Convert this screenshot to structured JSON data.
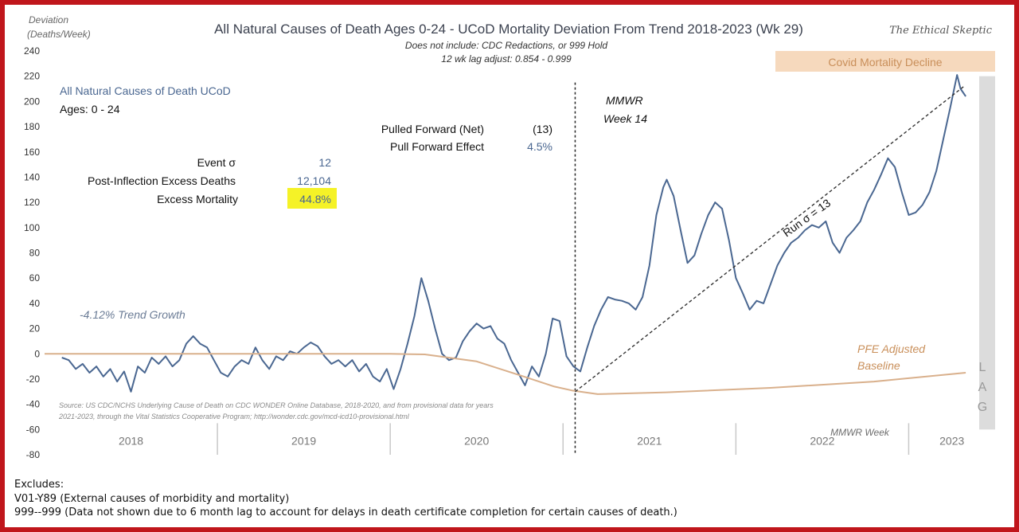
{
  "chart_data": {
    "type": "line",
    "title": "All Natural Causes of Death Ages 0-24 - UCoD Mortality Deviation From Trend  2018-2023 (Wk 29)",
    "subtitle_lines": [
      "Does not include: CDC Redactions,  or 999 Hold",
      "12 wk lag adjust: 0.854 - 0.999"
    ],
    "brand": "The Ethical Skeptic",
    "ylabel_lines": [
      "Deviation",
      "(Deaths/Week)"
    ],
    "ylim": [
      -80,
      240
    ],
    "yticks": [
      -80,
      -60,
      -40,
      -20,
      0,
      20,
      40,
      60,
      80,
      100,
      120,
      140,
      160,
      180,
      200,
      220,
      240
    ],
    "x_categories": [
      "2018",
      "2019",
      "2020",
      "2021",
      "2022",
      "2023"
    ],
    "xlabel": "MMWR Week",
    "series": [
      {
        "name": "All Natural Causes of Death UCoD",
        "color": "#4a6791",
        "points": [
          [
            0.1,
            -3
          ],
          [
            0.14,
            -5
          ],
          [
            0.18,
            -12
          ],
          [
            0.22,
            -8
          ],
          [
            0.26,
            -15
          ],
          [
            0.3,
            -10
          ],
          [
            0.34,
            -18
          ],
          [
            0.38,
            -12
          ],
          [
            0.42,
            -22
          ],
          [
            0.46,
            -14
          ],
          [
            0.5,
            -30
          ],
          [
            0.54,
            -10
          ],
          [
            0.58,
            -15
          ],
          [
            0.62,
            -3
          ],
          [
            0.66,
            -8
          ],
          [
            0.7,
            -2
          ],
          [
            0.74,
            -10
          ],
          [
            0.78,
            -5
          ],
          [
            0.82,
            8
          ],
          [
            0.86,
            14
          ],
          [
            0.9,
            8
          ],
          [
            0.94,
            5
          ],
          [
            0.98,
            -5
          ],
          [
            1.02,
            -15
          ],
          [
            1.06,
            -18
          ],
          [
            1.1,
            -10
          ],
          [
            1.14,
            -5
          ],
          [
            1.18,
            -8
          ],
          [
            1.22,
            5
          ],
          [
            1.26,
            -5
          ],
          [
            1.3,
            -12
          ],
          [
            1.34,
            -2
          ],
          [
            1.38,
            -5
          ],
          [
            1.42,
            2
          ],
          [
            1.46,
            0
          ],
          [
            1.5,
            5
          ],
          [
            1.54,
            9
          ],
          [
            1.58,
            6
          ],
          [
            1.62,
            -2
          ],
          [
            1.66,
            -8
          ],
          [
            1.7,
            -5
          ],
          [
            1.74,
            -10
          ],
          [
            1.78,
            -5
          ],
          [
            1.82,
            -14
          ],
          [
            1.86,
            -8
          ],
          [
            1.9,
            -18
          ],
          [
            1.94,
            -22
          ],
          [
            1.98,
            -12
          ],
          [
            2.02,
            -28
          ],
          [
            2.06,
            -12
          ],
          [
            2.1,
            8
          ],
          [
            2.14,
            30
          ],
          [
            2.18,
            60
          ],
          [
            2.22,
            42
          ],
          [
            2.26,
            20
          ],
          [
            2.3,
            0
          ],
          [
            2.34,
            -5
          ],
          [
            2.38,
            -3
          ],
          [
            2.42,
            10
          ],
          [
            2.46,
            18
          ],
          [
            2.5,
            24
          ],
          [
            2.54,
            20
          ],
          [
            2.58,
            22
          ],
          [
            2.62,
            12
          ],
          [
            2.66,
            8
          ],
          [
            2.7,
            -5
          ],
          [
            2.74,
            -15
          ],
          [
            2.78,
            -25
          ],
          [
            2.82,
            -10
          ],
          [
            2.86,
            -18
          ],
          [
            2.9,
            0
          ],
          [
            2.94,
            28
          ],
          [
            2.98,
            26
          ],
          [
            3.02,
            -2
          ],
          [
            3.06,
            -10
          ],
          [
            3.1,
            -14
          ],
          [
            3.14,
            5
          ],
          [
            3.18,
            22
          ],
          [
            3.22,
            35
          ],
          [
            3.26,
            45
          ],
          [
            3.3,
            43
          ],
          [
            3.34,
            42
          ],
          [
            3.38,
            40
          ],
          [
            3.42,
            35
          ],
          [
            3.46,
            45
          ],
          [
            3.5,
            70
          ],
          [
            3.54,
            110
          ],
          [
            3.58,
            132
          ],
          [
            3.6,
            138
          ],
          [
            3.64,
            125
          ],
          [
            3.68,
            98
          ],
          [
            3.72,
            72
          ],
          [
            3.76,
            78
          ],
          [
            3.8,
            95
          ],
          [
            3.84,
            110
          ],
          [
            3.88,
            120
          ],
          [
            3.92,
            115
          ],
          [
            3.96,
            90
          ],
          [
            4.0,
            60
          ],
          [
            4.04,
            48
          ],
          [
            4.08,
            35
          ],
          [
            4.12,
            42
          ],
          [
            4.16,
            40
          ],
          [
            4.2,
            55
          ],
          [
            4.24,
            70
          ],
          [
            4.28,
            80
          ],
          [
            4.32,
            88
          ],
          [
            4.36,
            92
          ],
          [
            4.4,
            98
          ],
          [
            4.44,
            102
          ],
          [
            4.48,
            100
          ],
          [
            4.52,
            105
          ],
          [
            4.56,
            88
          ],
          [
            4.6,
            80
          ],
          [
            4.64,
            92
          ],
          [
            4.68,
            98
          ],
          [
            4.72,
            105
          ],
          [
            4.76,
            120
          ],
          [
            4.8,
            130
          ],
          [
            4.84,
            142
          ],
          [
            4.88,
            155
          ],
          [
            4.92,
            148
          ],
          [
            4.96,
            128
          ],
          [
            5.0,
            110
          ],
          [
            5.04,
            112
          ],
          [
            5.08,
            118
          ],
          [
            5.12,
            128
          ],
          [
            5.16,
            145
          ],
          [
            5.2,
            170
          ],
          [
            5.24,
            195
          ],
          [
            5.28,
            221
          ],
          [
            5.3,
            210
          ],
          [
            5.33,
            204
          ]
        ]
      },
      {
        "name": "PFE Adjusted Baseline",
        "color": "#d9b08c",
        "points": [
          [
            0,
            0
          ],
          [
            1.0,
            0
          ],
          [
            2.0,
            0
          ],
          [
            2.2,
            -0.5
          ],
          [
            2.5,
            -6
          ],
          [
            2.75,
            -17
          ],
          [
            2.95,
            -26
          ],
          [
            3.05,
            -29
          ],
          [
            3.2,
            -32
          ],
          [
            3.6,
            -30.5
          ],
          [
            4.2,
            -27
          ],
          [
            4.8,
            -22
          ],
          [
            5.33,
            -15
          ]
        ]
      },
      {
        "name": "Run σ = 13",
        "color": "#333333",
        "style": "dashed",
        "points": [
          [
            3.07,
            -30
          ],
          [
            5.32,
            212
          ]
        ]
      }
    ],
    "annotations": {
      "series_label": "All Natural Causes of Death UCoD",
      "ages": "Ages: 0 - 24",
      "event_sigma_label": "Event σ",
      "event_sigma_value": "12",
      "excess_deaths_label": "Post-Inflection Excess Deaths",
      "excess_deaths_value": "12,104",
      "excess_mortality_label": "Excess Mortality",
      "excess_mortality_value": "44.8%",
      "pulled_forward_label": "Pulled Forward (Net)",
      "pulled_forward_value": "(13)",
      "pull_forward_effect_label": "Pull Forward Effect",
      "pull_forward_effect_value": "4.5%",
      "trend_growth": "-4.12% Trend Growth",
      "mmwr_line1": "MMWR",
      "mmwr_line2": "Week 14",
      "run_sigma": "Run σ = 13",
      "covid_decline": "Covid Mortality Decline",
      "pfe_line1": "PFE Adjusted",
      "pfe_line2": "Baseline",
      "lag_letters": [
        "L",
        "A",
        "G"
      ],
      "source_line1": "Source: US CDC/NCHS Underlying Cause of Death on CDC WONDER Online Database, 2018-2020, and from provisional data for years",
      "source_line2": "2021-2023, through the Vital Statistics Cooperative Program; http://wonder.cdc.gov/mcd-icd10-provisional.html"
    }
  },
  "notes": {
    "excludes": "Excludes:",
    "line1": "V01-Y89 (External causes of morbidity and mortality)",
    "line2": "999--999 (Data not shown due to 6 month lag to account for delays in death certificate completion for certain causes of death.)"
  }
}
